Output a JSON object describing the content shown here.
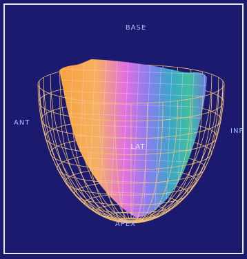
{
  "labels": {
    "top": "BASE",
    "left": "ANT",
    "right": "INF",
    "center": "LAT",
    "bottom": "APEX"
  }
}
